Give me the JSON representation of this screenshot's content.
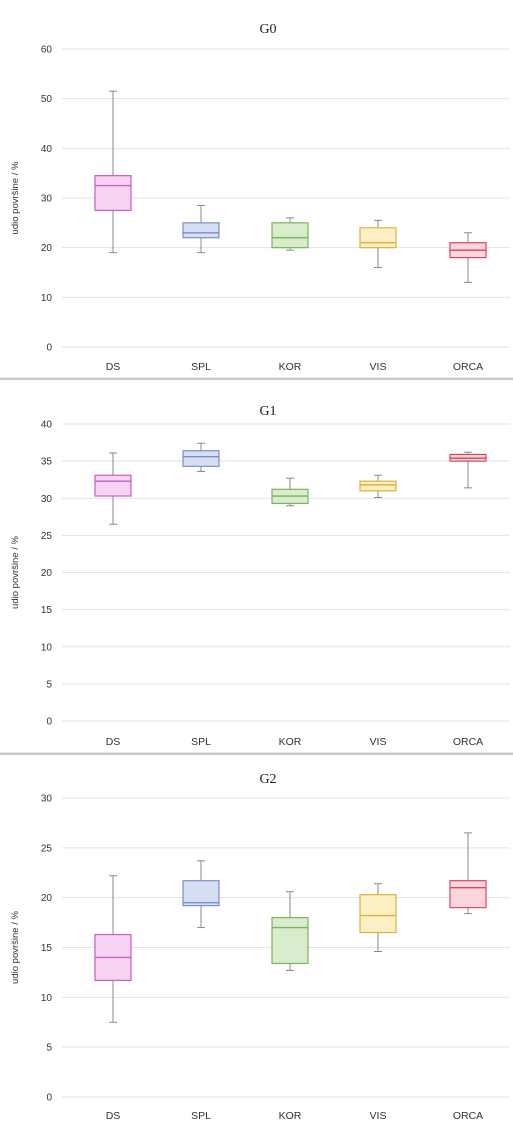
{
  "chart_data": [
    {
      "type": "box",
      "title": "G0",
      "ylabel": "udio površine / %",
      "ylim": [
        0,
        60
      ],
      "yticks": [
        0,
        10,
        20,
        30,
        40,
        50,
        60
      ],
      "grid": true,
      "categories": [
        "DS",
        "SPL",
        "KOR",
        "VIS",
        "ORCA"
      ],
      "boxes": [
        {
          "category": "DS",
          "min": 19,
          "q1": 27.5,
          "median": 32.5,
          "q3": 34.5,
          "max": 51.5
        },
        {
          "category": "SPL",
          "min": 19,
          "q1": 22,
          "median": 23,
          "q3": 25,
          "max": 28.5
        },
        {
          "category": "KOR",
          "min": 19.5,
          "q1": 20,
          "median": 22,
          "q3": 25,
          "max": 26
        },
        {
          "category": "VIS",
          "min": 16,
          "q1": 20,
          "median": 21,
          "q3": 24,
          "max": 25.5
        },
        {
          "category": "ORCA",
          "min": 13,
          "q1": 18,
          "median": 19.5,
          "q3": 21,
          "max": 23
        }
      ]
    },
    {
      "type": "box",
      "title": "G1",
      "ylabel": "udio površine / %",
      "ylim": [
        0,
        40
      ],
      "yticks": [
        0,
        5,
        10,
        15,
        20,
        25,
        30,
        35,
        40
      ],
      "grid": true,
      "categories": [
        "DS",
        "SPL",
        "KOR",
        "VIS",
        "ORCA"
      ],
      "boxes": [
        {
          "category": "DS",
          "min": 26.5,
          "q1": 30.3,
          "median": 32.3,
          "q3": 33.1,
          "max": 36.1
        },
        {
          "category": "SPL",
          "min": 33.6,
          "q1": 34.3,
          "median": 35.6,
          "q3": 36.4,
          "max": 37.4
        },
        {
          "category": "KOR",
          "min": 29,
          "q1": 29.3,
          "median": 30.3,
          "q3": 31.2,
          "max": 32.7
        },
        {
          "category": "VIS",
          "min": 30.1,
          "q1": 31,
          "median": 31.8,
          "q3": 32.3,
          "max": 33.1
        },
        {
          "category": "ORCA",
          "min": 31.4,
          "q1": 35,
          "median": 35.4,
          "q3": 35.9,
          "max": 36.2
        }
      ]
    },
    {
      "type": "box",
      "title": "G2",
      "ylabel": "udio površine / %",
      "ylim": [
        0,
        30
      ],
      "yticks": [
        0,
        5,
        10,
        15,
        20,
        25,
        30
      ],
      "grid": true,
      "categories": [
        "DS",
        "SPL",
        "KOR",
        "VIS",
        "ORCA"
      ],
      "boxes": [
        {
          "category": "DS",
          "min": 7.5,
          "q1": 11.7,
          "median": 14,
          "q3": 16.3,
          "max": 22.2
        },
        {
          "category": "SPL",
          "min": 17,
          "q1": 19.2,
          "median": 19.5,
          "q3": 21.7,
          "max": 23.7
        },
        {
          "category": "KOR",
          "min": 12.7,
          "q1": 13.4,
          "median": 17,
          "q3": 18,
          "max": 20.6
        },
        {
          "category": "VIS",
          "min": 14.6,
          "q1": 16.5,
          "median": 18.2,
          "q3": 20.3,
          "max": 21.4
        },
        {
          "category": "ORCA",
          "min": 18.4,
          "q1": 19,
          "median": 21,
          "q3": 21.7,
          "max": 26.5
        }
      ]
    }
  ],
  "colors": {
    "DS": {
      "fill": "#f7d3f3",
      "stroke": "#c75fc1"
    },
    "SPL": {
      "fill": "#d6def2",
      "stroke": "#7b8fc8"
    },
    "KOR": {
      "fill": "#d9eccd",
      "stroke": "#79b35b"
    },
    "VIS": {
      "fill": "#fcefc3",
      "stroke": "#dcb23e"
    },
    "ORCA": {
      "fill": "#fbd6dd",
      "stroke": "#d8475f"
    }
  }
}
